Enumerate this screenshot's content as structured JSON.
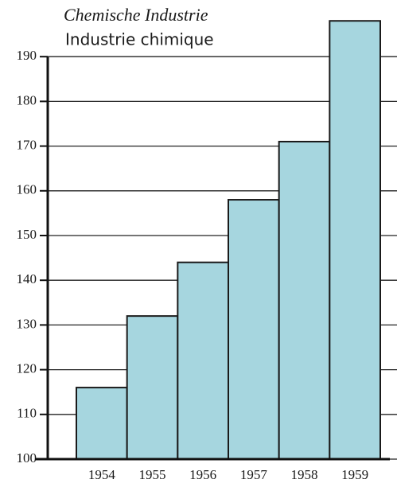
{
  "chart_data": {
    "type": "bar",
    "title": "Chemische Industrie",
    "subtitle": "Industrie chimique",
    "categories": [
      "1954",
      "1955",
      "1956",
      "1957",
      "1958",
      "1959"
    ],
    "values": [
      116,
      132,
      144,
      158,
      171,
      198
    ],
    "color": "#a6d6df",
    "ylim": [
      100,
      200
    ],
    "yticks": [
      100,
      110,
      120,
      130,
      140,
      150,
      160,
      170,
      180,
      190
    ],
    "grid": true
  }
}
